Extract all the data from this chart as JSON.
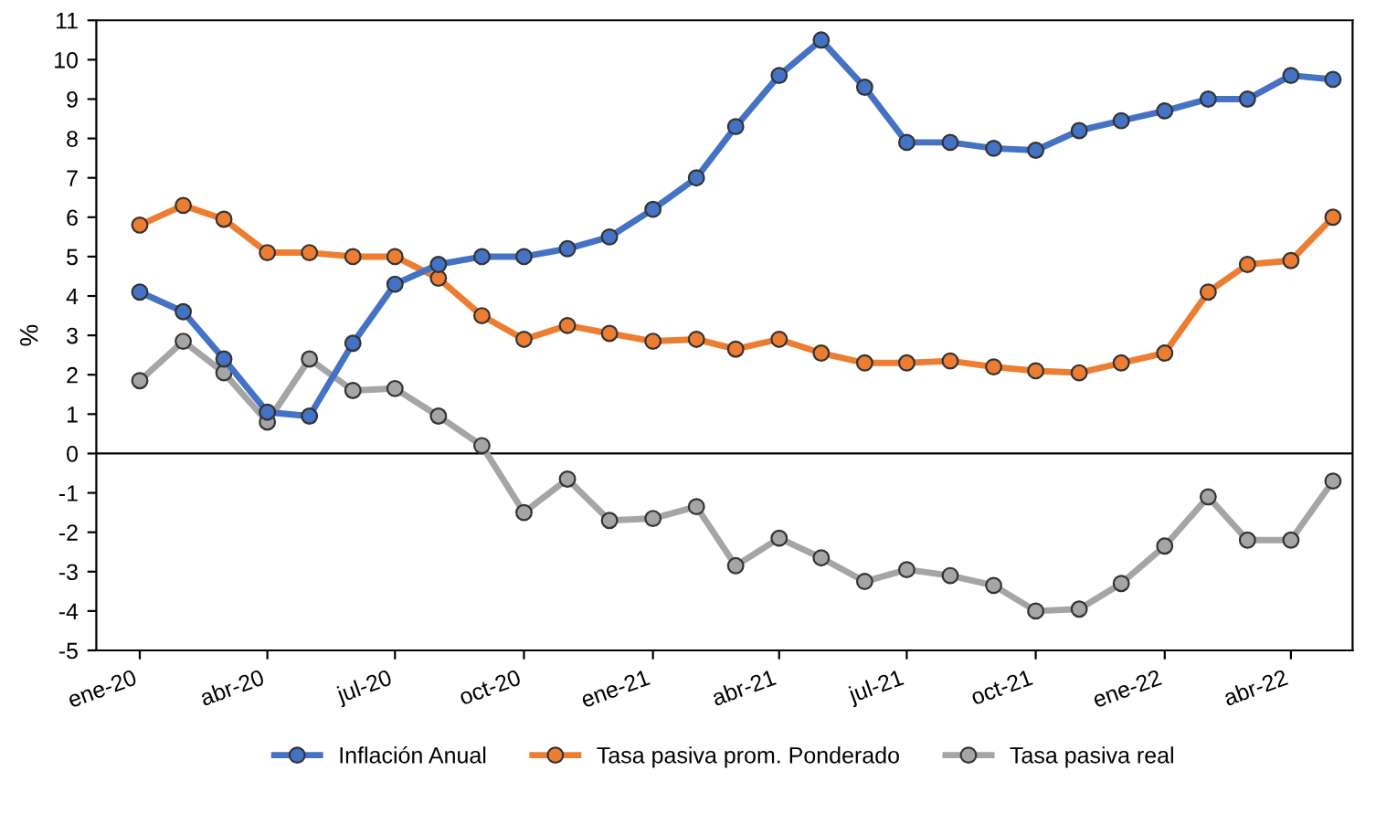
{
  "chart_data": {
    "type": "line",
    "ylabel": "%",
    "x": [
      "2020-01",
      "2020-02",
      "2020-03",
      "2020-04",
      "2020-05",
      "2020-06",
      "2020-07",
      "2020-08",
      "2020-09",
      "2020-10",
      "2020-11",
      "2020-12",
      "2021-01",
      "2021-02",
      "2021-03",
      "2021-04",
      "2021-05",
      "2021-06",
      "2021-07",
      "2021-08",
      "2021-09",
      "2021-10",
      "2021-11",
      "2021-12",
      "2022-01",
      "2022-02",
      "2022-03",
      "2022-04",
      "2022-05"
    ],
    "series": [
      {
        "name": "Inflación Anual",
        "color": "#4472c4",
        "values": [
          4.1,
          3.6,
          2.4,
          1.05,
          0.95,
          2.8,
          4.3,
          4.8,
          5.0,
          5.0,
          5.2,
          5.5,
          6.2,
          7.0,
          8.3,
          9.6,
          10.5,
          9.3,
          7.9,
          7.9,
          7.75,
          7.7,
          8.2,
          8.45,
          8.7,
          9.0,
          9.0,
          9.6,
          9.5
        ]
      },
      {
        "name": "Tasa pasiva prom. Ponderado",
        "color": "#ed7d31",
        "values": [
          5.8,
          6.3,
          5.95,
          5.1,
          5.1,
          5.0,
          5.0,
          4.45,
          3.5,
          2.9,
          3.25,
          3.05,
          2.85,
          2.9,
          2.65,
          2.9,
          2.55,
          2.3,
          2.3,
          2.35,
          2.2,
          2.1,
          2.05,
          2.3,
          2.55,
          4.1,
          4.8,
          4.9,
          6.0
        ]
      },
      {
        "name": "Tasa pasiva real",
        "color": "#a5a5a5",
        "values": [
          1.85,
          2.85,
          2.05,
          0.8,
          2.4,
          1.6,
          1.65,
          0.95,
          0.2,
          -1.5,
          -0.65,
          -1.7,
          -1.65,
          -1.35,
          -2.85,
          -2.15,
          -2.65,
          -3.25,
          -2.95,
          -3.1,
          -3.35,
          -4.0,
          -3.95,
          -3.3,
          -2.35,
          -1.1,
          -2.2,
          -2.2,
          -0.7
        ]
      }
    ],
    "xlim": [
      "2019-12",
      "2022-05-15"
    ],
    "xticks": [
      {
        "value": "2020-01",
        "label": "ene-20"
      },
      {
        "value": "2020-04",
        "label": "abr-20"
      },
      {
        "value": "2020-07",
        "label": "jul-20"
      },
      {
        "value": "2020-10",
        "label": "oct-20"
      },
      {
        "value": "2021-01",
        "label": "ene-21"
      },
      {
        "value": "2021-04",
        "label": "abr-21"
      },
      {
        "value": "2021-07",
        "label": "jul-21"
      },
      {
        "value": "2021-10",
        "label": "oct-21"
      },
      {
        "value": "2022-01",
        "label": "ene-22"
      },
      {
        "value": "2022-04",
        "label": "abr-22"
      }
    ],
    "ylim": [
      -5,
      11
    ],
    "yticks": [
      -5,
      -4,
      -3,
      -2,
      -1,
      0,
      1,
      2,
      3,
      4,
      5,
      6,
      7,
      8,
      9,
      10,
      11
    ],
    "ref_lines": [
      {
        "axis": "y",
        "value": 0,
        "color": "#000000"
      }
    ],
    "grid": false,
    "legend": "bottom",
    "marker": "circle",
    "line_style": "solid"
  }
}
